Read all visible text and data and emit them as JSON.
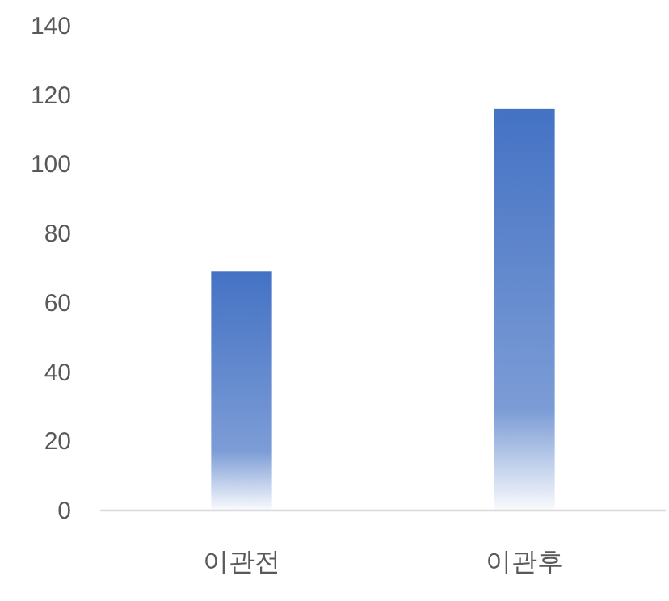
{
  "chart_data": {
    "type": "bar",
    "categories": [
      "이관전",
      "이관후"
    ],
    "values": [
      69,
      116
    ],
    "color": "#4472c4",
    "ylim": [
      0,
      140
    ],
    "yticks": [
      0,
      20,
      40,
      60,
      80,
      100,
      120,
      140
    ],
    "grid": false
  }
}
